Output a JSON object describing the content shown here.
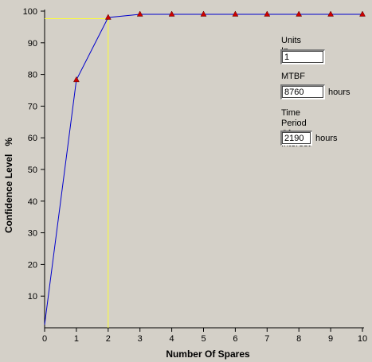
{
  "chart_data": {
    "type": "line",
    "xlabel": "Number Of Spares",
    "ylabel": "Confidence Level   %",
    "xlim": [
      0,
      10
    ],
    "ylim": [
      0,
      100
    ],
    "x_ticks": [
      0,
      1,
      2,
      3,
      4,
      5,
      6,
      7,
      8,
      9,
      10
    ],
    "y_ticks": [
      10,
      20,
      30,
      40,
      50,
      60,
      70,
      80,
      90,
      100
    ],
    "x": [
      0,
      1,
      2,
      3,
      4,
      5,
      6,
      7,
      8,
      9,
      10
    ],
    "series": [
      {
        "values": [
          1,
          78.3,
          98.0,
          99.0,
          99.0,
          99.0,
          99.0,
          99.0,
          99.0,
          99.0,
          99.0
        ],
        "color": "#0000cc",
        "marker_color": "#cc0000"
      }
    ],
    "reference_lines": {
      "x": 2,
      "y": 97.6,
      "color": "#ffff33"
    },
    "grid": false
  },
  "inputs": {
    "units_label": "Units In Service",
    "units_value": "1",
    "mtbf_label": "MTBF",
    "mtbf_value": "8760",
    "mtbf_unit": "hours",
    "time_label": "Time Period\nOf Interest",
    "time_value": "2190",
    "time_unit": "hours"
  },
  "colors": {
    "background": "#d4d0c8",
    "axis": "#000000"
  }
}
